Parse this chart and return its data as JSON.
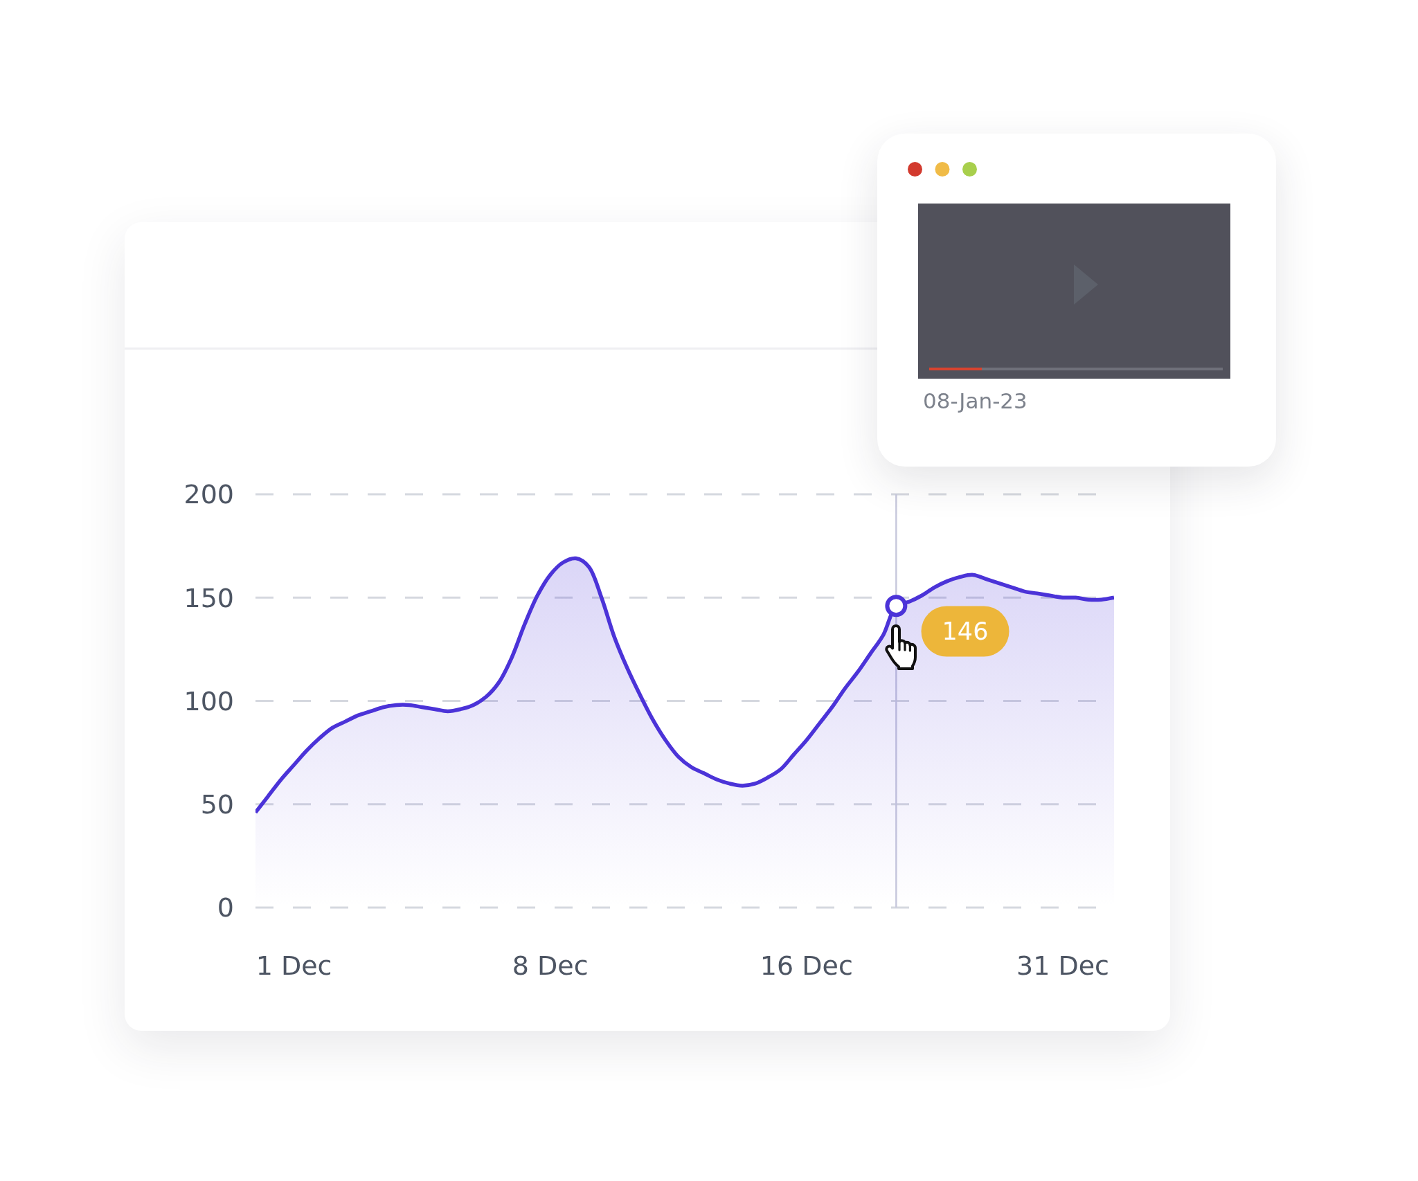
{
  "chart_data": {
    "type": "area",
    "categories": [
      null,
      null,
      null,
      "1 Dec",
      null,
      null,
      null,
      null,
      null,
      null,
      null,
      null,
      null,
      null,
      null,
      null,
      null,
      null,
      null,
      null,
      null,
      null,
      null,
      "8 Dec",
      null,
      null,
      null,
      null,
      null,
      null,
      null,
      null,
      null,
      null,
      null,
      null,
      null,
      null,
      null,
      null,
      null,
      null,
      null,
      "16 Dec",
      null,
      null,
      null,
      null,
      null,
      null,
      null,
      null,
      null,
      null,
      null,
      null,
      null,
      null,
      null,
      null,
      null,
      null,
      null,
      "31 Dec",
      null,
      null,
      null,
      null
    ],
    "values": [
      46,
      54,
      62,
      69,
      76,
      82,
      87,
      90,
      93,
      95,
      97,
      98,
      98,
      97,
      96,
      95,
      96,
      98,
      102,
      109,
      121,
      137,
      151,
      161,
      167,
      169,
      165,
      150,
      131,
      116,
      103,
      91,
      81,
      73,
      68,
      65,
      62,
      60,
      59,
      60,
      63,
      67,
      74,
      81,
      89,
      97,
      106,
      114,
      123,
      132,
      146,
      148,
      151,
      155,
      158,
      160,
      161,
      159,
      157,
      155,
      153,
      152,
      151,
      150,
      150,
      149,
      149,
      150
    ],
    "value_labels": [
      null,
      null,
      null,
      null,
      null,
      null,
      null,
      null,
      null,
      null,
      null,
      null,
      null,
      null,
      null,
      null,
      null,
      null,
      null,
      null,
      null,
      null,
      null,
      null,
      null,
      null,
      null,
      null,
      null,
      null,
      null,
      null,
      null,
      null,
      null,
      null,
      null,
      null,
      null,
      null,
      null,
      null,
      null,
      null,
      null,
      null,
      null,
      null,
      null,
      null,
      "146",
      null,
      null,
      null,
      null,
      null,
      null,
      null,
      null,
      null,
      null,
      null,
      null,
      null,
      null,
      null,
      null,
      null
    ],
    "color": "#4b33d8",
    "ylim": [
      0,
      200
    ],
    "yticks": [
      0,
      50,
      100,
      150,
      200
    ],
    "grid": "y",
    "annotations": [
      "08-Jan-23"
    ]
  }
}
